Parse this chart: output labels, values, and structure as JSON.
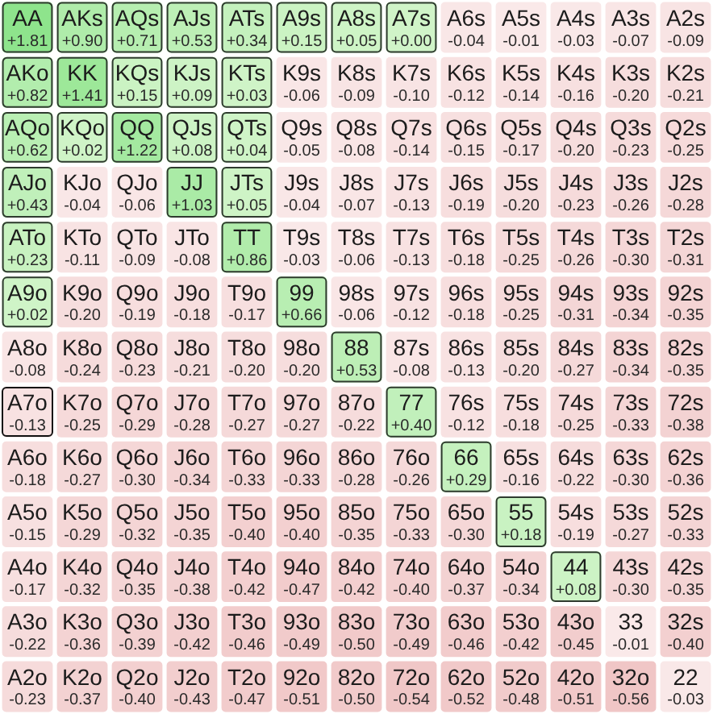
{
  "chart_data": {
    "type": "heatmap",
    "categories": [
      null,
      null,
      null,
      null,
      null,
      null,
      null,
      null,
      null,
      null,
      null,
      null,
      null
    ],
    "y_categories": [
      null,
      null,
      null,
      null,
      null,
      null,
      null,
      null,
      null,
      null,
      null,
      null,
      null
    ],
    "cells": [
      [
        1.81,
        0.9,
        0.71,
        0.53,
        0.34,
        0.15,
        0.05,
        0.0,
        -0.04,
        -0.01,
        -0.03,
        -0.07,
        -0.09
      ],
      [
        0.82,
        1.41,
        0.15,
        0.09,
        0.03,
        -0.06,
        -0.09,
        -0.1,
        -0.12,
        -0.14,
        -0.16,
        -0.2,
        -0.21
      ],
      [
        0.62,
        0.02,
        1.22,
        0.08,
        0.04,
        -0.05,
        -0.08,
        -0.14,
        -0.15,
        -0.17,
        -0.2,
        -0.23,
        -0.25
      ],
      [
        0.43,
        -0.04,
        -0.06,
        1.03,
        0.05,
        -0.04,
        -0.07,
        -0.13,
        -0.19,
        -0.2,
        -0.23,
        -0.26,
        -0.28
      ],
      [
        0.23,
        -0.11,
        -0.09,
        -0.08,
        0.86,
        -0.03,
        -0.06,
        -0.13,
        -0.18,
        -0.25,
        -0.26,
        -0.3,
        -0.31
      ],
      [
        0.02,
        -0.2,
        -0.19,
        -0.18,
        -0.17,
        0.66,
        -0.06,
        -0.12,
        -0.18,
        -0.25,
        -0.31,
        -0.34,
        -0.35
      ],
      [
        -0.08,
        -0.24,
        -0.23,
        -0.21,
        -0.2,
        -0.2,
        0.53,
        -0.08,
        -0.13,
        -0.2,
        -0.27,
        -0.34,
        -0.35
      ],
      [
        -0.13,
        -0.25,
        -0.29,
        -0.28,
        -0.27,
        -0.27,
        -0.22,
        0.4,
        -0.12,
        -0.18,
        -0.25,
        -0.33,
        -0.38
      ],
      [
        -0.18,
        -0.27,
        -0.3,
        -0.34,
        -0.33,
        -0.33,
        -0.28,
        -0.26,
        0.29,
        -0.16,
        -0.22,
        -0.3,
        -0.36
      ],
      [
        -0.15,
        -0.29,
        -0.32,
        -0.35,
        -0.4,
        -0.4,
        -0.35,
        -0.33,
        -0.3,
        0.18,
        -0.19,
        -0.27,
        -0.33
      ],
      [
        -0.17,
        -0.32,
        -0.35,
        -0.38,
        -0.42,
        -0.47,
        -0.42,
        -0.4,
        -0.37,
        -0.34,
        0.08,
        -0.3,
        -0.35
      ],
      [
        -0.22,
        -0.36,
        -0.39,
        -0.42,
        -0.46,
        -0.49,
        -0.5,
        -0.49,
        -0.46,
        -0.42,
        -0.45,
        -0.01,
        -0.4
      ],
      [
        -0.23,
        -0.37,
        -0.4,
        -0.43,
        -0.47,
        -0.51,
        -0.5,
        -0.54,
        -0.52,
        -0.48,
        -0.51,
        -0.56,
        -0.03
      ]
    ],
    "cell_labels": [
      [
        "+1.81",
        "+0.90",
        "+0.71",
        "+0.53",
        "+0.34",
        "+0.15",
        "+0.05",
        "+0.00",
        "-0.04",
        "-0.01",
        "-0.03",
        "-0.07",
        "-0.09"
      ],
      [
        "+0.82",
        "+1.41",
        "+0.15",
        "+0.09",
        "+0.03",
        "-0.06",
        "-0.09",
        "-0.10",
        "-0.12",
        "-0.14",
        "-0.16",
        "-0.20",
        "-0.21"
      ],
      [
        "+0.62",
        "+0.02",
        "+1.22",
        "+0.08",
        "+0.04",
        "-0.05",
        "-0.08",
        "-0.14",
        "-0.15",
        "-0.17",
        "-0.20",
        "-0.23",
        "-0.25"
      ],
      [
        "+0.43",
        "-0.04",
        "-0.06",
        "+1.03",
        "+0.05",
        "-0.04",
        "-0.07",
        "-0.13",
        "-0.19",
        "-0.20",
        "-0.23",
        "-0.26",
        "-0.28"
      ],
      [
        "+0.23",
        "-0.11",
        "-0.09",
        "-0.08",
        "+0.86",
        "-0.03",
        "-0.06",
        "-0.13",
        "-0.18",
        "-0.25",
        "-0.26",
        "-0.30",
        "-0.31"
      ],
      [
        "+0.02",
        "-0.20",
        "-0.19",
        "-0.18",
        "-0.17",
        "+0.66",
        "-0.06",
        "-0.12",
        "-0.18",
        "-0.25",
        "-0.31",
        "-0.34",
        "-0.35"
      ],
      [
        "-0.08",
        "-0.24",
        "-0.23",
        "-0.21",
        "-0.20",
        "-0.20",
        "+0.53",
        "-0.08",
        "-0.13",
        "-0.20",
        "-0.27",
        "-0.34",
        "-0.35"
      ],
      [
        "-0.13",
        "-0.25",
        "-0.29",
        "-0.28",
        "-0.27",
        "-0.27",
        "-0.22",
        "+0.40",
        "-0.12",
        "-0.18",
        "-0.25",
        "-0.33",
        "-0.38"
      ],
      [
        "-0.18",
        "-0.27",
        "-0.30",
        "-0.34",
        "-0.33",
        "-0.33",
        "-0.28",
        "-0.26",
        "+0.29",
        "-0.16",
        "-0.22",
        "-0.30",
        "-0.36"
      ],
      [
        "-0.15",
        "-0.29",
        "-0.32",
        "-0.35",
        "-0.40",
        "-0.40",
        "-0.35",
        "-0.33",
        "-0.30",
        "+0.18",
        "-0.19",
        "-0.27",
        "-0.33"
      ],
      [
        "-0.17",
        "-0.32",
        "-0.35",
        "-0.38",
        "-0.42",
        "-0.47",
        "-0.42",
        "-0.40",
        "-0.37",
        "-0.34",
        "+0.08",
        "-0.30",
        "-0.35"
      ],
      [
        "-0.22",
        "-0.36",
        "-0.39",
        "-0.42",
        "-0.46",
        "-0.49",
        "-0.50",
        "-0.49",
        "-0.46",
        "-0.42",
        "-0.45",
        "-0.01",
        "-0.40"
      ],
      [
        "-0.23",
        "-0.37",
        "-0.40",
        "-0.43",
        "-0.47",
        "-0.51",
        "-0.50",
        "-0.54",
        "-0.52",
        "-0.48",
        "-0.51",
        "-0.56",
        "-0.03"
      ]
    ],
    "annotations": [
      "AA",
      "AKs",
      "AQs",
      "AJs",
      "ATs",
      "A9s",
      "A8s",
      "A7s",
      "A6s",
      "A5s",
      "A4s",
      "A3s",
      "A2s",
      "AKo",
      "KK",
      "KQs",
      "KJs",
      "KTs",
      "K9s",
      "K8s",
      "K7s",
      "K6s",
      "K5s",
      "K4s",
      "K3s",
      "K2s",
      "AQo",
      "KQo",
      "QQ",
      "QJs",
      "QTs",
      "Q9s",
      "Q8s",
      "Q7s",
      "Q6s",
      "Q5s",
      "Q4s",
      "Q3s",
      "Q2s",
      "AJo",
      "KJo",
      "QJo",
      "JJ",
      "JTs",
      "J9s",
      "J8s",
      "J7s",
      "J6s",
      "J5s",
      "J4s",
      "J3s",
      "J2s",
      "ATo",
      "KTo",
      "QTo",
      "JTo",
      "TT",
      "T9s",
      "T8s",
      "T7s",
      "T6s",
      "T5s",
      "T4s",
      "T3s",
      "T2s",
      "A9o",
      "K9o",
      "Q9o",
      "J9o",
      "T9o",
      "99",
      "98s",
      "97s",
      "96s",
      "95s",
      "94s",
      "93s",
      "92s",
      "A8o",
      "K8o",
      "Q8o",
      "J8o",
      "T8o",
      "98o",
      "88",
      "87s",
      "86s",
      "85s",
      "84s",
      "83s",
      "82s",
      "A7o",
      "K7o",
      "Q7o",
      "J7o",
      "T7o",
      "97o",
      "87o",
      "77",
      "76s",
      "75s",
      "74s",
      "73s",
      "72s",
      "A6o",
      "K6o",
      "Q6o",
      "J6o",
      "T6o",
      "96o",
      "86o",
      "76o",
      "66",
      "65s",
      "64s",
      "63s",
      "62s",
      "A5o",
      "K5o",
      "Q5o",
      "J5o",
      "T5o",
      "95o",
      "85o",
      "75o",
      "65o",
      "55",
      "54s",
      "53s",
      "52s",
      "A4o",
      "K4o",
      "Q4o",
      "J4o",
      "T4o",
      "94o",
      "84o",
      "74o",
      "64o",
      "54o",
      "44",
      "43s",
      "42s",
      "A3o",
      "K3o",
      "Q3o",
      "J3o",
      "T3o",
      "93o",
      "83o",
      "73o",
      "63o",
      "53o",
      "43o",
      "33",
      "32s",
      "A2o",
      "K2o",
      "Q2o",
      "J2o",
      "T2o",
      "92o",
      "82o",
      "72o",
      "62o",
      "52o",
      "42o",
      "32o",
      "22"
    ]
  }
}
